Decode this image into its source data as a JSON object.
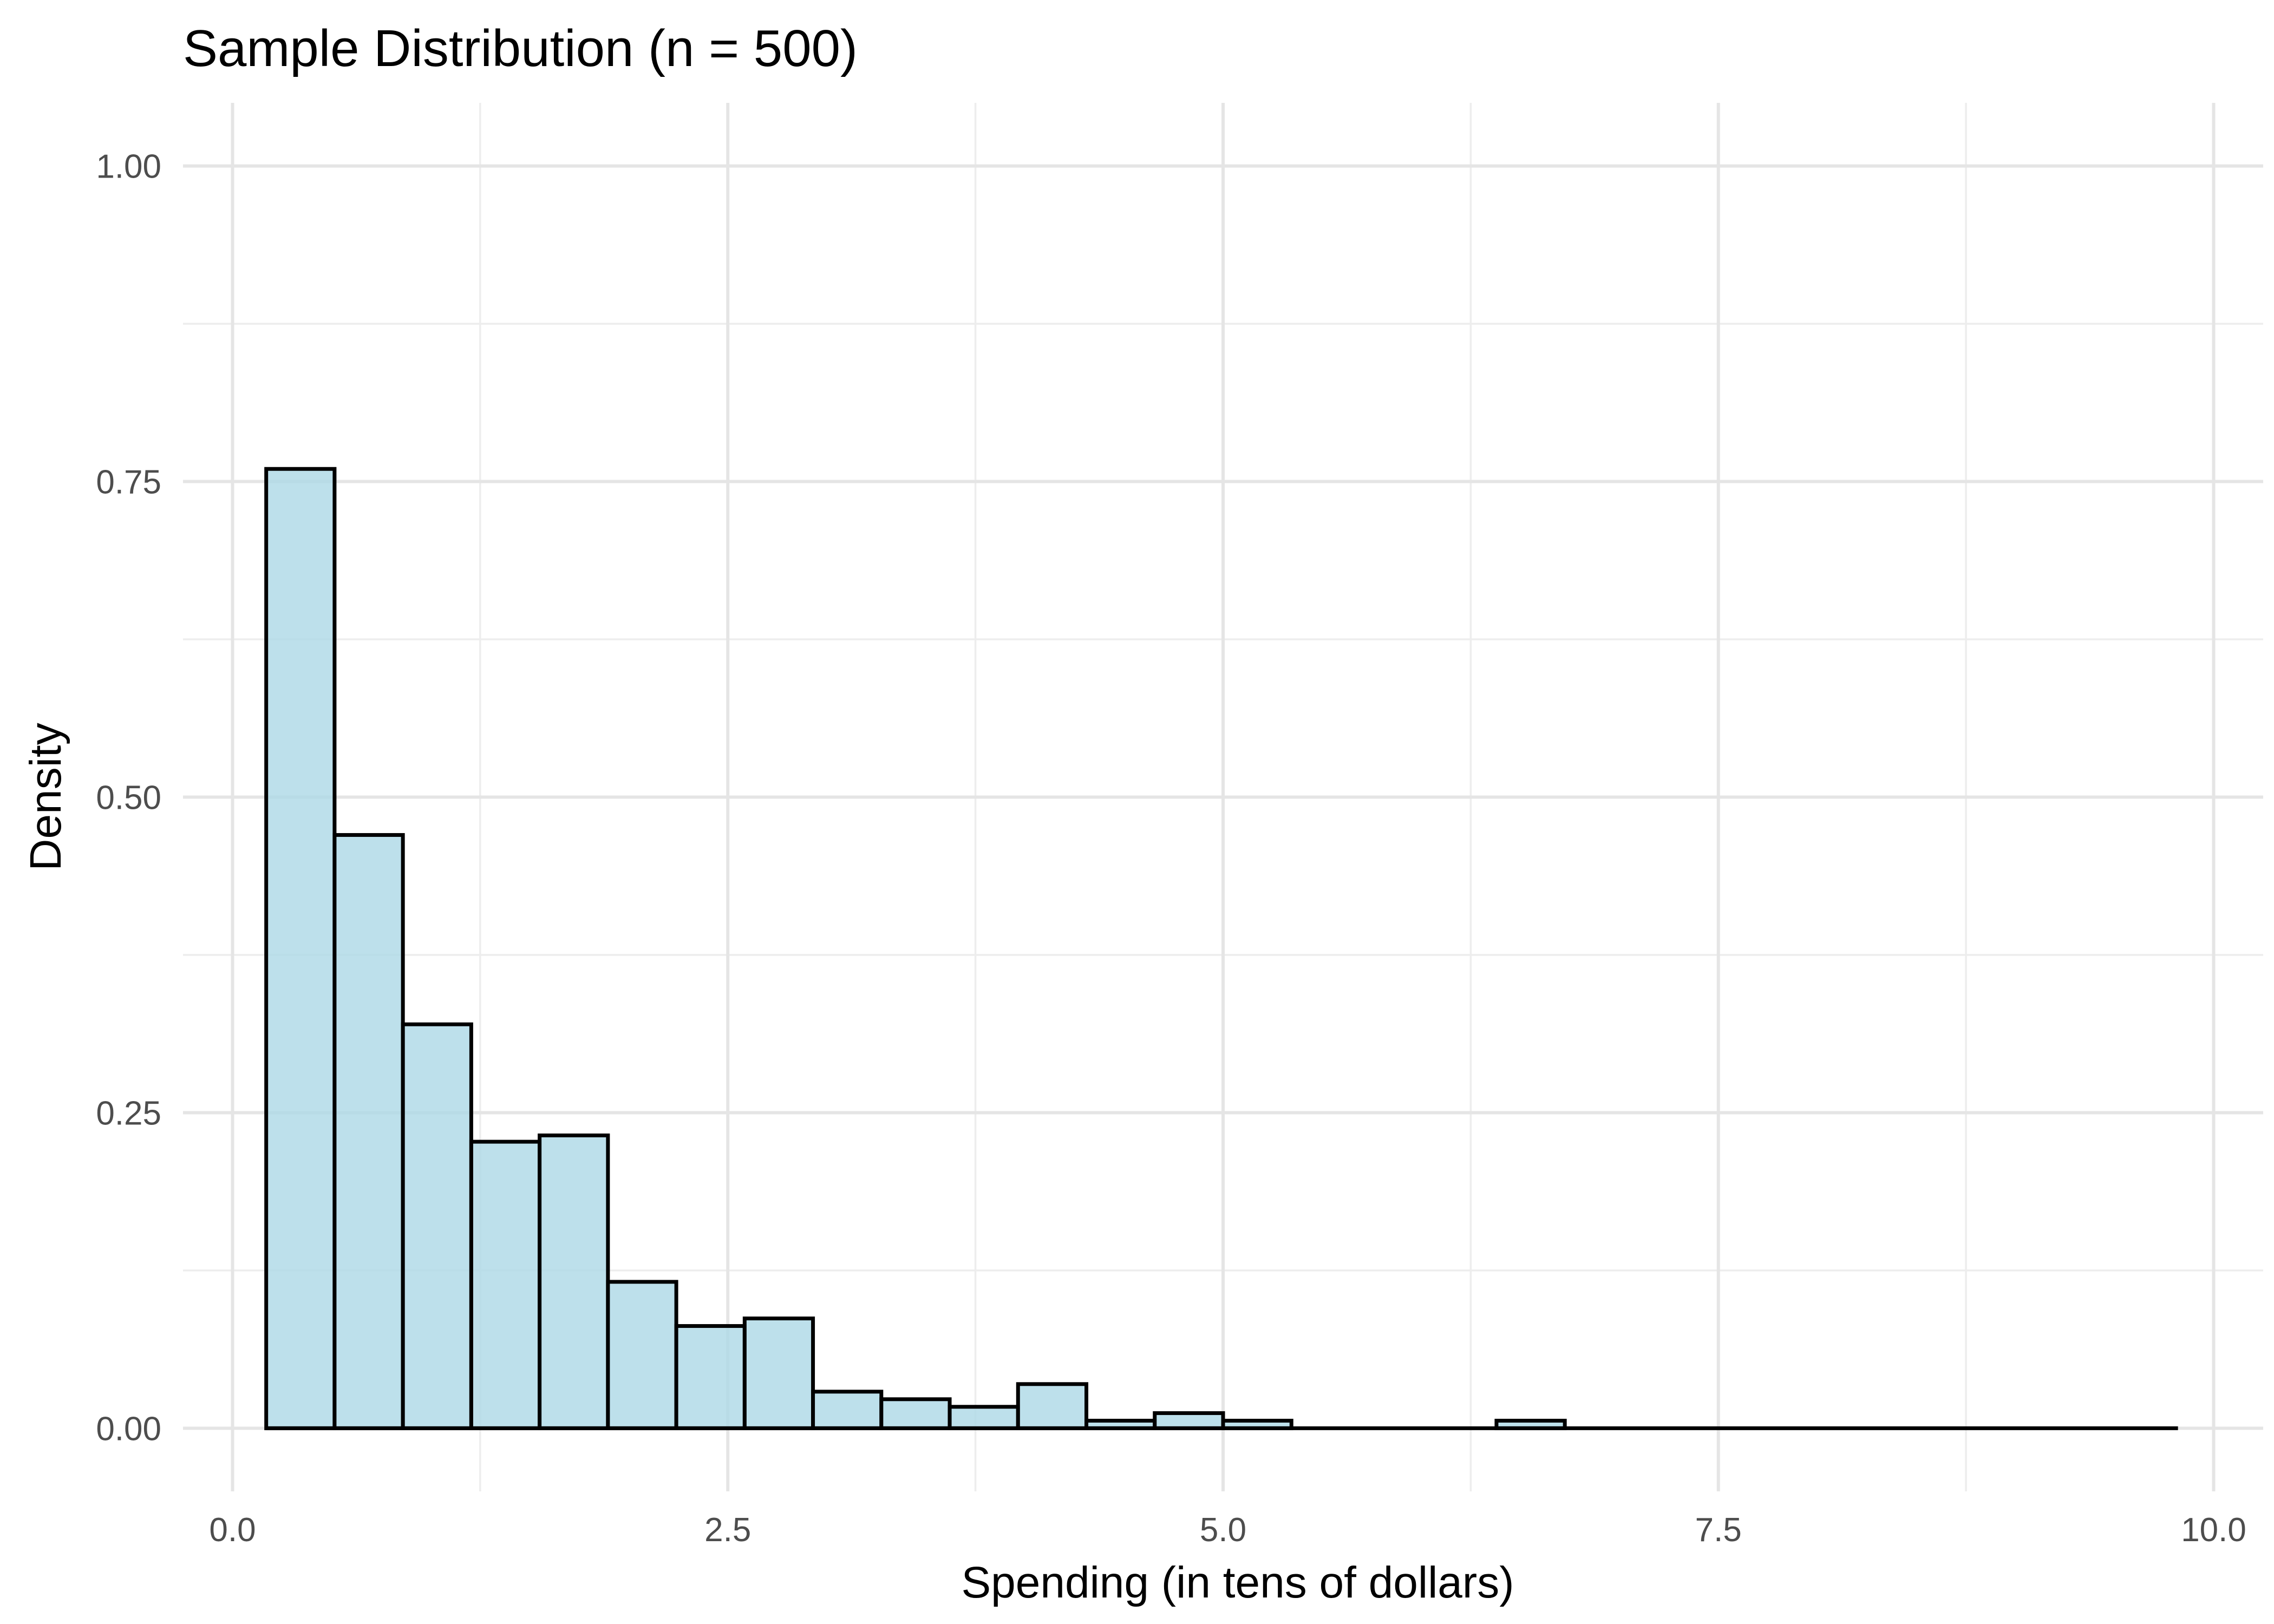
{
  "chart_data": {
    "type": "bar",
    "title": "Sample Distribution (n = 500)",
    "xlabel": "Spending (in tens of dollars)",
    "ylabel": "Density",
    "xlim": [
      -0.25,
      10.25
    ],
    "ylim": [
      -0.05,
      1.05
    ],
    "x_ticks": [
      0,
      2.5,
      5,
      7.5,
      10
    ],
    "x_tick_labels": [
      "0.0",
      "2.5",
      "5.0",
      "7.5",
      "10.0"
    ],
    "y_ticks": [
      0,
      0.25,
      0.5,
      0.75,
      1
    ],
    "y_tick_labels": [
      "0.00",
      "0.25",
      "0.50",
      "0.75",
      "1.00"
    ],
    "grid": true,
    "legend": "none",
    "bin_start": 0.17,
    "bin_width": 0.345,
    "range_end": 9.82,
    "values": [
      0.76,
      0.47,
      0.32,
      0.227,
      0.232,
      0.116,
      0.081,
      0.087,
      0.029,
      0.023,
      0.017,
      0.035,
      0.006,
      0.012,
      0.006,
      0,
      0,
      0,
      0.006,
      0,
      0,
      0,
      0,
      0,
      0,
      0,
      0,
      0
    ],
    "colors": {
      "fill": "#add8e6",
      "outline": "#000000"
    }
  }
}
